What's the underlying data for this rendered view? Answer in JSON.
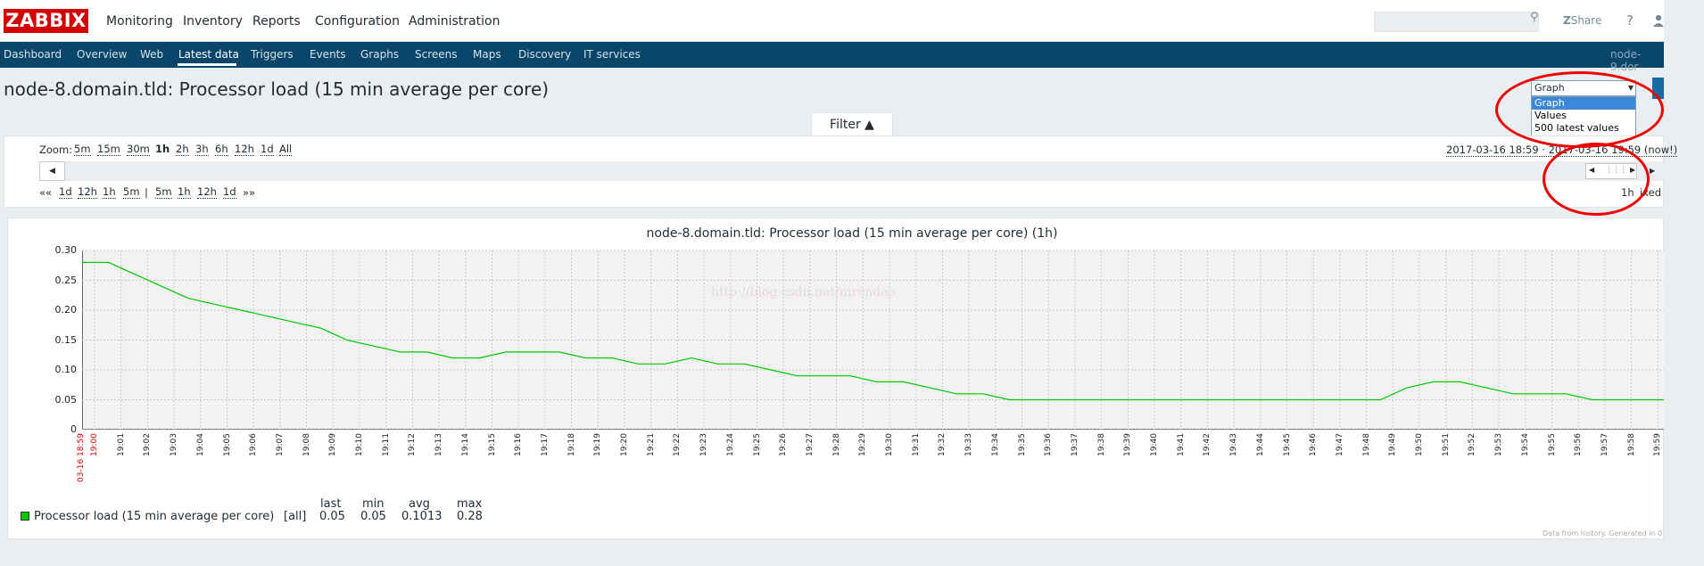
{
  "brand": {
    "logo": "ZABBIX"
  },
  "main_menu": [
    "Monitoring",
    "Inventory",
    "Reports",
    "Configuration",
    "Administration"
  ],
  "top_right": {
    "search_placeholder": "",
    "share": "Share",
    "help": "?"
  },
  "sub_menu": [
    "Dashboard",
    "Overview",
    "Web",
    "Latest data",
    "Triggers",
    "Events",
    "Graphs",
    "Screens",
    "Maps",
    "Discovery",
    "IT services"
  ],
  "host_label": "node-9.dor",
  "page_title": "node-8.domain.tld: Processor load (15 min average per core)",
  "view_select": {
    "selected": "Graph",
    "options": [
      "Graph",
      "Values",
      "500 latest values"
    ]
  },
  "filter": {
    "tab_label": "Filter ▲",
    "zoom_label": "Zoom:",
    "zoom_options": [
      "5m",
      "15m",
      "30m",
      "1h",
      "2h",
      "3h",
      "6h",
      "12h",
      "1d",
      "All"
    ],
    "zoom_active": "1h",
    "range_text": "2017-03-16 18:59 · 2017-03-16 19:59 (now!)",
    "nav_back": "««",
    "nav_back_options": [
      "1d",
      "12h",
      "1h",
      "5m"
    ],
    "nav_sep": "|",
    "nav_forward_options": [
      "5m",
      "1h",
      "12h",
      "1d"
    ],
    "nav_forward": "»»",
    "period_label": "1h",
    "fixed_label": "ixed"
  },
  "graph": {
    "title": "node-8.domain.tld: Processor load (15 min average per core) (1h)",
    "watermark": "http://blog.csdn.net/nirendao"
  },
  "chart_data": {
    "type": "line",
    "y_ticks": [
      "0.30",
      "0.25",
      "0.20",
      "0.15",
      "0.10",
      "0.05",
      "0"
    ],
    "ylim": [
      0,
      0.3
    ],
    "x_start_label": "03-16 18:59",
    "x_ticks": [
      "19:00",
      "19:01",
      "19:02",
      "19:03",
      "19:04",
      "19:05",
      "19:06",
      "19:07",
      "19:08",
      "19:09",
      "19:10",
      "19:11",
      "19:12",
      "19:13",
      "19:14",
      "19:15",
      "19:16",
      "19:17",
      "19:18",
      "19:19",
      "19:20",
      "19:21",
      "19:22",
      "19:23",
      "19:24",
      "19:25",
      "19:26",
      "19:27",
      "19:28",
      "19:29",
      "19:30",
      "19:31",
      "19:32",
      "19:33",
      "19:34",
      "19:35",
      "19:36",
      "19:37",
      "19:38",
      "19:39",
      "19:40",
      "19:41",
      "19:42",
      "19:43",
      "19:44",
      "19:45",
      "19:46",
      "19:47",
      "19:48",
      "19:49",
      "19:50",
      "19:51",
      "19:52",
      "19:53",
      "19:54",
      "19:55",
      "19:56",
      "19:57",
      "19:58",
      "19:59"
    ],
    "series": [
      {
        "name": "Processor load (15 min average per core)",
        "color": "#00c800",
        "values": [
          0.28,
          0.28,
          0.26,
          0.24,
          0.22,
          0.21,
          0.2,
          0.19,
          0.18,
          0.17,
          0.15,
          0.14,
          0.13,
          0.13,
          0.12,
          0.12,
          0.13,
          0.13,
          0.13,
          0.12,
          0.12,
          0.11,
          0.11,
          0.12,
          0.11,
          0.11,
          0.1,
          0.09,
          0.09,
          0.09,
          0.08,
          0.08,
          0.07,
          0.06,
          0.06,
          0.05,
          0.05,
          0.05,
          0.05,
          0.05,
          0.05,
          0.05,
          0.05,
          0.05,
          0.05,
          0.05,
          0.05,
          0.05,
          0.05,
          0.05,
          0.07,
          0.08,
          0.08,
          0.07,
          0.06,
          0.06,
          0.06,
          0.05,
          0.05,
          0.05,
          0.05
        ]
      }
    ],
    "legend": {
      "headers": [
        "last",
        "min",
        "avg",
        "max"
      ],
      "label": "Processor load (15 min average per core)",
      "func": "[all]",
      "stats": [
        "0.05",
        "0.05",
        "0.1013",
        "0.28"
      ]
    }
  },
  "footer_note": "Data from history. Generated in 0"
}
